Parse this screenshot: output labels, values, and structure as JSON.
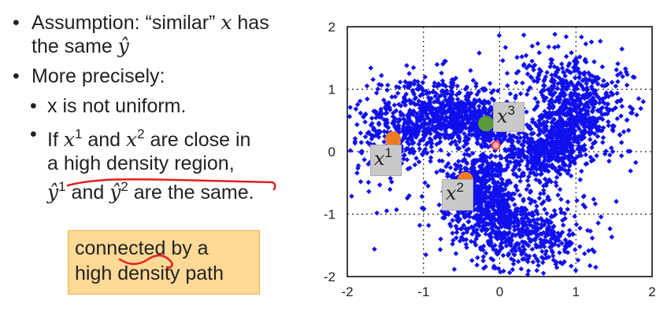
{
  "bullets": {
    "b1_pre": "Assumption: “similar” ",
    "b1_x": "x",
    "b1_mid": " has",
    "b1_line2_pre": "the same ",
    "b1_yhat": "ŷ",
    "b2": "More precisely:",
    "b3": "x is not uniform.",
    "b4_if": "If ",
    "b4_x": "x",
    "b4_sup1": "1",
    "b4_and": " and ",
    "b4_sup2": "2",
    "b4_tail": " are close in",
    "b4_line2": "a high density region,",
    "b4_line3_mid": " and ",
    "b4_line3_tail": " are the same."
  },
  "callout": {
    "line1": "connected by a",
    "line2": "high density path"
  },
  "point_labels": {
    "x1": "x",
    "x1_sup": "1",
    "x2": "x",
    "x2_sup": "2",
    "x3": "x",
    "x3_sup": "3"
  },
  "colors": {
    "scatter": "#1010ee",
    "point_orange": "#f07a22",
    "point_green": "#5a9a3a",
    "point_red": "#ee3333",
    "callout_bg": "#ffd996",
    "underline": "#e02020"
  },
  "chart_data": {
    "type": "scatter",
    "xlim": [
      -2,
      2
    ],
    "ylim": [
      -2,
      2
    ],
    "x_ticks": [
      "-2",
      "-1",
      "0",
      "1",
      "2"
    ],
    "y_ticks": [
      "2",
      "1",
      "0",
      "-1",
      "-2"
    ],
    "grid": "dotted",
    "series": [
      {
        "shape": "three-arm spiral",
        "center": [
          0,
          0
        ],
        "arm_angles_deg": [
          210,
          330,
          90
        ]
      }
    ],
    "highlighted_points": [
      {
        "label": "x1",
        "x": -1.4,
        "y": 0.2,
        "color": "orange"
      },
      {
        "label": "x2",
        "x": -0.45,
        "y": -0.45,
        "color": "orange"
      },
      {
        "label": "x3",
        "x": -0.18,
        "y": 0.45,
        "color": "green"
      },
      {
        "label": "",
        "x": -0.05,
        "y": 0.1,
        "color": "red"
      }
    ]
  }
}
